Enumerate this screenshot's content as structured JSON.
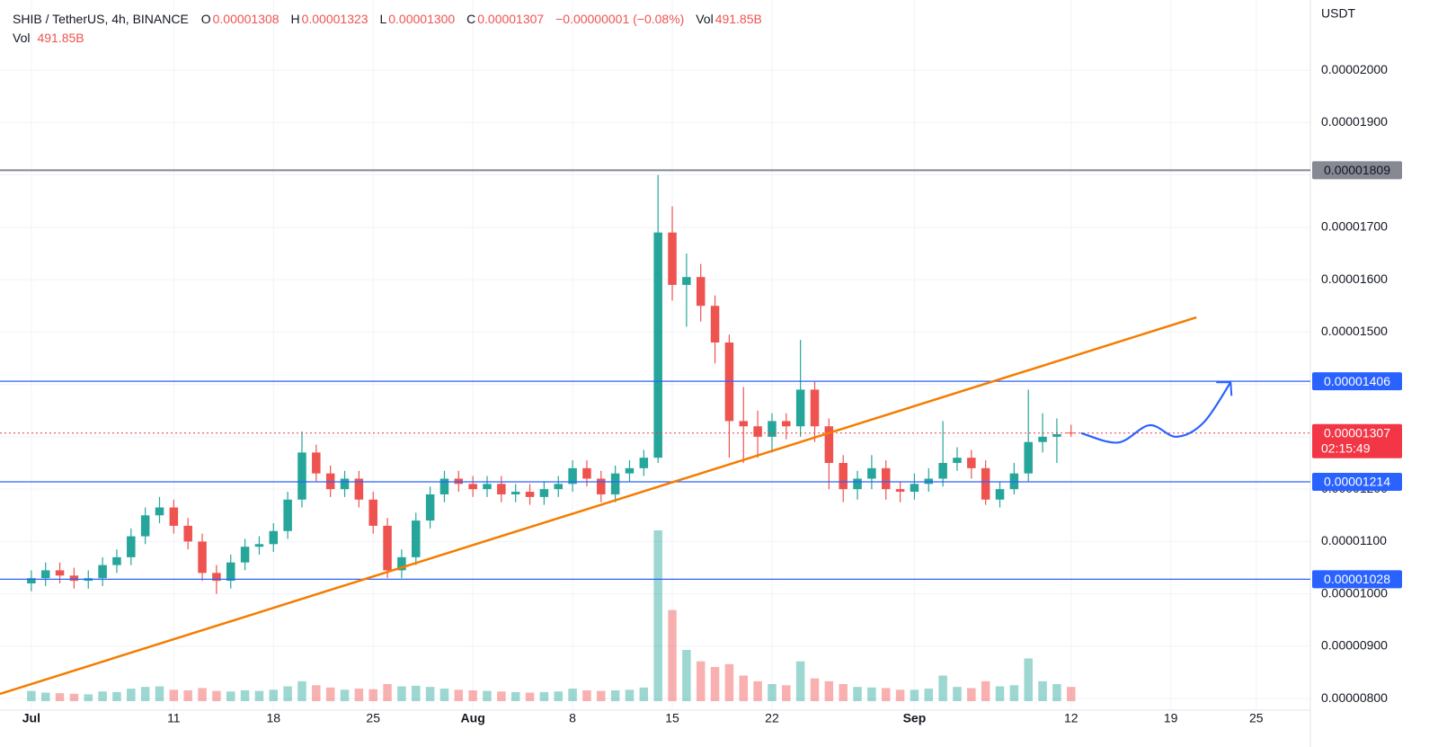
{
  "header": {
    "symbol": "SHIB / TetherUS, 4h, BINANCE",
    "ohlc": [
      {
        "key": "O",
        "value": "0.00001308"
      },
      {
        "key": "H",
        "value": "0.00001323"
      },
      {
        "key": "L",
        "value": "0.00001300"
      },
      {
        "key": "C",
        "value": "0.00001307"
      }
    ],
    "change": "−0.00000001 (−0.08%)",
    "vol_key": "Vol",
    "vol_value": "491.85B",
    "vol_line_key": "Vol",
    "vol_line_value": "491.85B"
  },
  "axis_unit": "USDT",
  "chart_data": {
    "type": "candlestick",
    "x": [
      0,
      1,
      2,
      3,
      4,
      5,
      6,
      7,
      8,
      9,
      10,
      11,
      12,
      13,
      14,
      15,
      16,
      17,
      18,
      19,
      20,
      21,
      22,
      23,
      24,
      25,
      26,
      27,
      28,
      29,
      30,
      31,
      32,
      33,
      34,
      35,
      36,
      37,
      38,
      39,
      40,
      41,
      42,
      43,
      44,
      45,
      46,
      47,
      48,
      49,
      50,
      51,
      52,
      53,
      54,
      55,
      56,
      57,
      58,
      59,
      60,
      61,
      62,
      63,
      64,
      65,
      66,
      67,
      68,
      69,
      70,
      71,
      72,
      73
    ],
    "open": [
      1.02e-05,
      1.03e-05,
      1.045e-05,
      1.035e-05,
      1.025e-05,
      1.03e-05,
      1.055e-05,
      1.07e-05,
      1.11e-05,
      1.15e-05,
      1.165e-05,
      1.13e-05,
      1.1e-05,
      1.04e-05,
      1.025e-05,
      1.06e-05,
      1.09e-05,
      1.095e-05,
      1.12e-05,
      1.18e-05,
      1.27e-05,
      1.23e-05,
      1.2e-05,
      1.22e-05,
      1.18e-05,
      1.13e-05,
      1.045e-05,
      1.07e-05,
      1.14e-05,
      1.19e-05,
      1.22e-05,
      1.21e-05,
      1.2e-05,
      1.21e-05,
      1.19e-05,
      1.195e-05,
      1.185e-05,
      1.2e-05,
      1.21e-05,
      1.24e-05,
      1.22e-05,
      1.19e-05,
      1.23e-05,
      1.24e-05,
      1.26e-05,
      1.69e-05,
      1.59e-05,
      1.605e-05,
      1.55e-05,
      1.48e-05,
      1.33e-05,
      1.32e-05,
      1.3e-05,
      1.33e-05,
      1.32e-05,
      1.39e-05,
      1.32e-05,
      1.25e-05,
      1.2e-05,
      1.22e-05,
      1.24e-05,
      1.2e-05,
      1.195e-05,
      1.21e-05,
      1.22e-05,
      1.25e-05,
      1.26e-05,
      1.24e-05,
      1.18e-05,
      1.2e-05,
      1.23e-05,
      1.29e-05,
      1.3e-05,
      1.308e-05
    ],
    "high": [
      1.045e-05,
      1.06e-05,
      1.06e-05,
      1.05e-05,
      1.045e-05,
      1.07e-05,
      1.085e-05,
      1.125e-05,
      1.165e-05,
      1.185e-05,
      1.18e-05,
      1.145e-05,
      1.115e-05,
      1.055e-05,
      1.075e-05,
      1.105e-05,
      1.11e-05,
      1.135e-05,
      1.195e-05,
      1.31e-05,
      1.285e-05,
      1.245e-05,
      1.235e-05,
      1.235e-05,
      1.195e-05,
      1.145e-05,
      1.085e-05,
      1.155e-05,
      1.205e-05,
      1.235e-05,
      1.235e-05,
      1.225e-05,
      1.225e-05,
      1.225e-05,
      1.21e-05,
      1.21e-05,
      1.215e-05,
      1.225e-05,
      1.255e-05,
      1.255e-05,
      1.235e-05,
      1.245e-05,
      1.255e-05,
      1.275e-05,
      1.8e-05,
      1.74e-05,
      1.65e-05,
      1.63e-05,
      1.57e-05,
      1.495e-05,
      1.395e-05,
      1.35e-05,
      1.345e-05,
      1.345e-05,
      1.485e-05,
      1.405e-05,
      1.335e-05,
      1.265e-05,
      1.235e-05,
      1.265e-05,
      1.255e-05,
      1.215e-05,
      1.23e-05,
      1.24e-05,
      1.33e-05,
      1.28e-05,
      1.275e-05,
      1.255e-05,
      1.215e-05,
      1.25e-05,
      1.39e-05,
      1.345e-05,
      1.335e-05,
      1.323e-05
    ],
    "low": [
      1.005e-05,
      1.015e-05,
      1.02e-05,
      1.01e-05,
      1.01e-05,
      1.015e-05,
      1.04e-05,
      1.055e-05,
      1.095e-05,
      1.135e-05,
      1.115e-05,
      1.085e-05,
      1.025e-05,
      1e-05,
      1.01e-05,
      1.045e-05,
      1.075e-05,
      1.08e-05,
      1.105e-05,
      1.165e-05,
      1.215e-05,
      1.185e-05,
      1.185e-05,
      1.165e-05,
      1.115e-05,
      1.03e-05,
      1.03e-05,
      1.055e-05,
      1.125e-05,
      1.175e-05,
      1.195e-05,
      1.185e-05,
      1.185e-05,
      1.175e-05,
      1.175e-05,
      1.17e-05,
      1.17e-05,
      1.185e-05,
      1.195e-05,
      1.205e-05,
      1.175e-05,
      1.175e-05,
      1.215e-05,
      1.225e-05,
      1.25e-05,
      1.56e-05,
      1.51e-05,
      1.52e-05,
      1.44e-05,
      1.26e-05,
      1.25e-05,
      1.26e-05,
      1.27e-05,
      1.295e-05,
      1.3e-05,
      1.29e-05,
      1.2e-05,
      1.175e-05,
      1.18e-05,
      1.2e-05,
      1.18e-05,
      1.175e-05,
      1.18e-05,
      1.195e-05,
      1.205e-05,
      1.235e-05,
      1.22e-05,
      1.17e-05,
      1.165e-05,
      1.19e-05,
      1.215e-05,
      1.27e-05,
      1.25e-05,
      1.3e-05
    ],
    "close": [
      1.03e-05,
      1.045e-05,
      1.035e-05,
      1.025e-05,
      1.03e-05,
      1.055e-05,
      1.07e-05,
      1.11e-05,
      1.15e-05,
      1.165e-05,
      1.13e-05,
      1.1e-05,
      1.04e-05,
      1.025e-05,
      1.06e-05,
      1.09e-05,
      1.095e-05,
      1.12e-05,
      1.18e-05,
      1.27e-05,
      1.23e-05,
      1.2e-05,
      1.22e-05,
      1.18e-05,
      1.13e-05,
      1.045e-05,
      1.07e-05,
      1.14e-05,
      1.19e-05,
      1.22e-05,
      1.21e-05,
      1.2e-05,
      1.21e-05,
      1.19e-05,
      1.195e-05,
      1.185e-05,
      1.2e-05,
      1.21e-05,
      1.24e-05,
      1.22e-05,
      1.19e-05,
      1.23e-05,
      1.24e-05,
      1.26e-05,
      1.69e-05,
      1.59e-05,
      1.605e-05,
      1.55e-05,
      1.48e-05,
      1.33e-05,
      1.32e-05,
      1.3e-05,
      1.33e-05,
      1.32e-05,
      1.39e-05,
      1.32e-05,
      1.25e-05,
      1.2e-05,
      1.22e-05,
      1.24e-05,
      1.2e-05,
      1.195e-05,
      1.21e-05,
      1.22e-05,
      1.25e-05,
      1.26e-05,
      1.24e-05,
      1.18e-05,
      1.2e-05,
      1.23e-05,
      1.29e-05,
      1.3e-05,
      1.305e-05,
      1.307e-05
    ],
    "volume": [
      1800,
      1500,
      1400,
      1300,
      1200,
      1700,
      1600,
      2200,
      2500,
      2600,
      2000,
      1900,
      2300,
      1800,
      1700,
      1900,
      1800,
      2000,
      2600,
      3500,
      2800,
      2400,
      2000,
      2200,
      2100,
      3000,
      2600,
      2700,
      2500,
      2200,
      2000,
      1900,
      1800,
      1700,
      1600,
      1500,
      1600,
      1700,
      2200,
      1900,
      1800,
      1900,
      2000,
      2400,
      30000,
      16000,
      9000,
      7000,
      6000,
      6500,
      4500,
      3500,
      3000,
      2800,
      7000,
      4000,
      3500,
      3000,
      2500,
      2400,
      2300,
      2000,
      2000,
      2200,
      4500,
      2500,
      2300,
      3500,
      2600,
      2800,
      7500,
      3500,
      3000,
      2500
    ],
    "up_color": "#26a69a",
    "down_color": "#ef5350",
    "xlim": [
      -2.2,
      89.8
    ],
    "xticks": [
      {
        "value": 0,
        "label": "Jul"
      },
      {
        "value": 10,
        "label": "11"
      },
      {
        "value": 17,
        "label": "18"
      },
      {
        "value": 24,
        "label": "25"
      },
      {
        "value": 31,
        "label": "Aug"
      },
      {
        "value": 38,
        "label": "8"
      },
      {
        "value": 45,
        "label": "15"
      },
      {
        "value": 52,
        "label": "22"
      },
      {
        "value": 62,
        "label": "Sep"
      },
      {
        "value": 73,
        "label": "12"
      },
      {
        "value": 80,
        "label": "19"
      },
      {
        "value": 86,
        "label": "25"
      }
    ],
    "ylim": [
      7.78e-06,
      2.134e-05
    ],
    "yticks": [
      {
        "value": 8e-06,
        "label": "0.00000800"
      },
      {
        "value": 9e-06,
        "label": "0.00000900"
      },
      {
        "value": 1e-05,
        "label": "0.00001000"
      },
      {
        "value": 1.1e-05,
        "label": "0.00001100"
      },
      {
        "value": 1.2e-05,
        "label": "0.00001200"
      },
      {
        "value": 1.3e-05,
        "label": "0.00001300"
      },
      {
        "value": 1.4e-05,
        "label": "0.00001400"
      },
      {
        "value": 1.5e-05,
        "label": "0.00001500"
      },
      {
        "value": 1.6e-05,
        "label": "0.00001600"
      },
      {
        "value": 1.7e-05,
        "label": "0.00001700"
      },
      {
        "value": 1.8e-05,
        "label": "0.00001800"
      },
      {
        "value": 1.9e-05,
        "label": "0.00001900"
      },
      {
        "value": 2e-05,
        "label": "0.00002000"
      }
    ],
    "grid": true,
    "levels": [
      {
        "value": 1.809e-05,
        "label": "0.00001809",
        "color": "#868993"
      },
      {
        "value": 1.406e-05,
        "label": "0.00001406",
        "color": "#2962ff"
      },
      {
        "value": 1.214e-05,
        "label": "0.00001214",
        "color": "#2962ff"
      },
      {
        "value": 1.028e-05,
        "label": "0.00001028",
        "color": "#2962ff"
      }
    ],
    "current_price": {
      "value": 1.307e-05,
      "label": "0.00001307",
      "countdown": "02:15:49",
      "color": "#f23645"
    },
    "trendline": {
      "color": "#f57c00",
      "x": [
        -2.2,
        81.8
      ],
      "y": [
        8.09e-06,
        1.528e-05
      ]
    },
    "forecast": {
      "color": "#2962ff",
      "x": [
        73.7,
        76.3,
        78.5,
        80.4,
        82.3,
        84.2
      ],
      "y": [
        1.307e-05,
        1.289e-05,
        1.322e-05,
        1.3e-05,
        1.327e-05,
        1.404e-05
      ]
    }
  }
}
